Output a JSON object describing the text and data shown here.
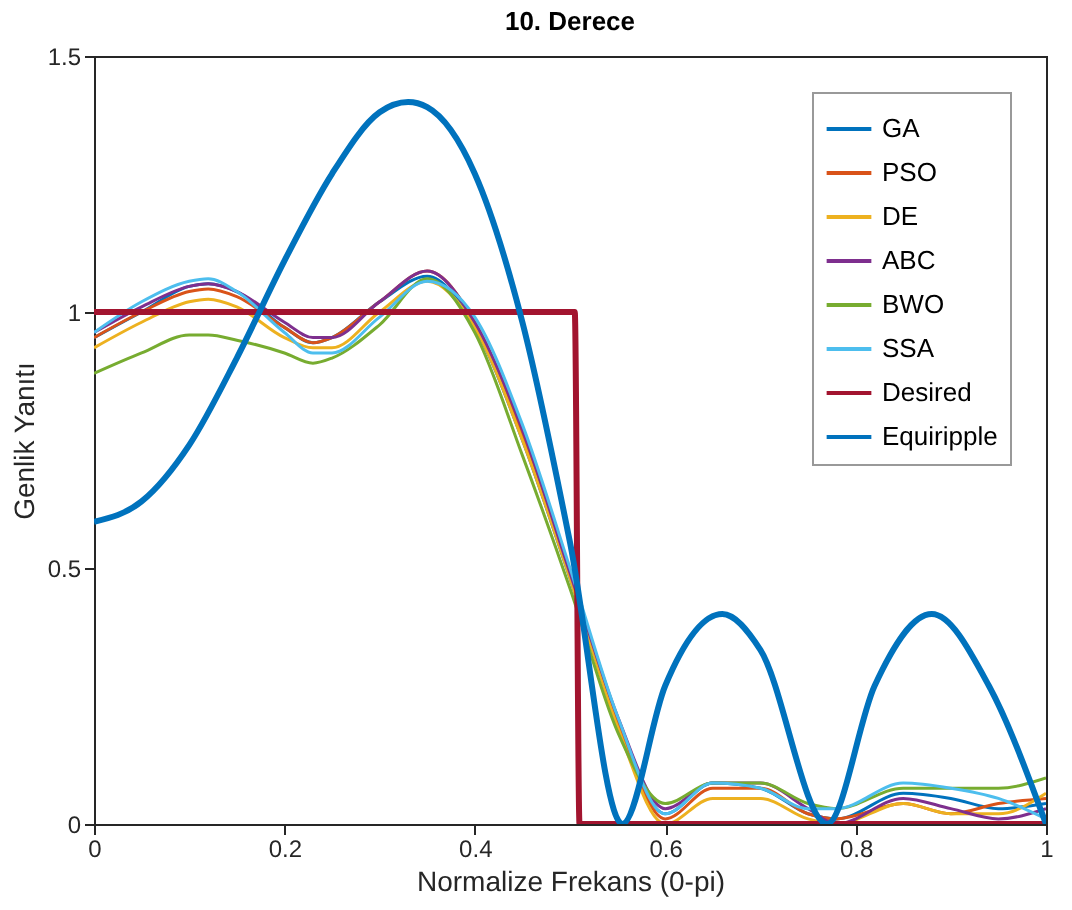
{
  "chart_data": {
    "type": "line",
    "title": "10. Derece",
    "xlabel": "Normalize Frekans (0-pi)",
    "ylabel": "Genlik Yanıtı",
    "x": [
      0,
      0.05,
      0.1,
      0.12,
      0.15,
      0.2,
      0.23,
      0.25,
      0.3,
      0.35,
      0.4,
      0.45,
      0.5,
      0.55,
      0.6,
      0.65,
      0.7,
      0.75,
      0.78,
      0.85,
      0.9,
      0.95,
      1.0
    ],
    "series": [
      {
        "name": "GA",
        "color": "#0072bd",
        "values": [
          0.95,
          1.0,
          1.05,
          1.055,
          1.04,
          0.97,
          0.94,
          0.95,
          1.02,
          1.07,
          0.97,
          0.75,
          0.48,
          0.2,
          0.02,
          0.08,
          0.07,
          0.02,
          0.01,
          0.06,
          0.05,
          0.03,
          0.04
        ]
      },
      {
        "name": "PSO",
        "color": "#d95319",
        "values": [
          0.95,
          1.0,
          1.04,
          1.045,
          1.03,
          0.97,
          0.94,
          0.95,
          1.02,
          1.08,
          0.98,
          0.76,
          0.49,
          0.2,
          0.01,
          0.07,
          0.07,
          0.02,
          0.01,
          0.04,
          0.02,
          0.04,
          0.05
        ]
      },
      {
        "name": "DE",
        "color": "#edb120",
        "values": [
          0.93,
          0.98,
          1.02,
          1.025,
          1.01,
          0.95,
          0.93,
          0.93,
          1.0,
          1.06,
          0.97,
          0.75,
          0.48,
          0.19,
          0.0,
          0.05,
          0.05,
          0.01,
          0.0,
          0.04,
          0.02,
          0.02,
          0.06
        ]
      },
      {
        "name": "ABC",
        "color": "#7e2f8e",
        "values": [
          0.96,
          1.01,
          1.05,
          1.055,
          1.04,
          0.98,
          0.95,
          0.95,
          1.02,
          1.08,
          0.98,
          0.77,
          0.49,
          0.21,
          0.03,
          0.08,
          0.08,
          0.03,
          0.0,
          0.05,
          0.03,
          0.01,
          0.03
        ]
      },
      {
        "name": "BWO",
        "color": "#77ac30",
        "values": [
          0.88,
          0.92,
          0.955,
          0.955,
          0.945,
          0.92,
          0.9,
          0.91,
          0.975,
          1.065,
          0.96,
          0.72,
          0.46,
          0.18,
          0.04,
          0.08,
          0.08,
          0.04,
          0.03,
          0.07,
          0.07,
          0.07,
          0.09
        ]
      },
      {
        "name": "SSA",
        "color": "#4dbeee",
        "values": [
          0.96,
          1.02,
          1.06,
          1.065,
          1.04,
          0.96,
          0.92,
          0.92,
          0.99,
          1.06,
          0.99,
          0.78,
          0.5,
          0.21,
          0.02,
          0.08,
          0.07,
          0.03,
          0.03,
          0.08,
          0.07,
          0.05,
          0.01
        ]
      },
      {
        "name": "Desired",
        "color": "#a2142f",
        "x": [
          0,
          0.505,
          0.51,
          1.0
        ],
        "values": [
          1,
          1,
          0,
          0
        ]
      },
      {
        "name": "Equiripple",
        "color": "#0072bd",
        "x": [
          0,
          0.05,
          0.1,
          0.15,
          0.2,
          0.25,
          0.3,
          0.33,
          0.35,
          0.4,
          0.45,
          0.5,
          0.555,
          0.6,
          0.66,
          0.7,
          0.77,
          0.82,
          0.88,
          0.94,
          1.0
        ],
        "values": [
          0.59,
          0.63,
          0.74,
          0.91,
          1.1,
          1.27,
          1.39,
          1.41,
          1.4,
          1.27,
          0.98,
          0.55,
          0,
          0.27,
          0.41,
          0.34,
          0,
          0.27,
          0.41,
          0.27,
          0
        ]
      }
    ],
    "xlim": [
      0,
      1
    ],
    "xticks": [
      0,
      0.2,
      0.4,
      0.6,
      0.8,
      1
    ],
    "ylim": [
      0,
      1.5
    ],
    "yticks": [
      0,
      0.5,
      1,
      1.5
    ],
    "legend": "top right",
    "grid": false,
    "line_style": "solid",
    "marker": "none"
  }
}
